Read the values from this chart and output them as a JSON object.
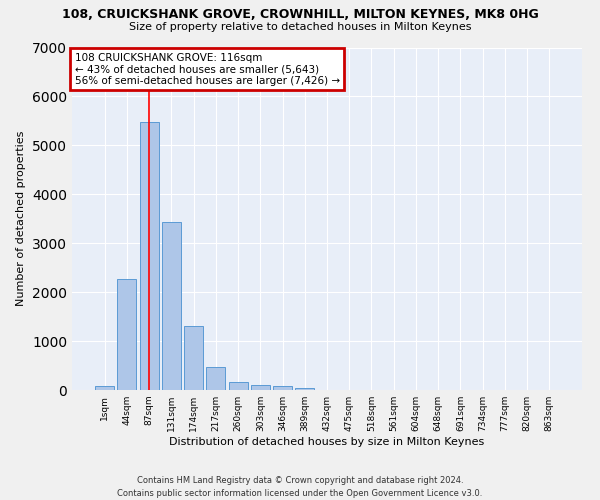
{
  "title": "108, CRUICKSHANK GROVE, CROWNHILL, MILTON KEYNES, MK8 0HG",
  "subtitle": "Size of property relative to detached houses in Milton Keynes",
  "xlabel": "Distribution of detached houses by size in Milton Keynes",
  "ylabel": "Number of detached properties",
  "footer_line1": "Contains HM Land Registry data © Crown copyright and database right 2024.",
  "footer_line2": "Contains public sector information licensed under the Open Government Licence v3.0.",
  "categories": [
    "1sqm",
    "44sqm",
    "87sqm",
    "131sqm",
    "174sqm",
    "217sqm",
    "260sqm",
    "303sqm",
    "346sqm",
    "389sqm",
    "432sqm",
    "475sqm",
    "518sqm",
    "561sqm",
    "604sqm",
    "648sqm",
    "691sqm",
    "734sqm",
    "777sqm",
    "820sqm",
    "863sqm"
  ],
  "values": [
    75,
    2270,
    5470,
    3440,
    1300,
    460,
    155,
    100,
    75,
    50,
    0,
    0,
    0,
    0,
    0,
    0,
    0,
    0,
    0,
    0,
    0
  ],
  "bar_color": "#aec6e8",
  "bar_edge_color": "#5b9bd5",
  "background_color": "#e8eef8",
  "grid_color": "#ffffff",
  "annotation_line1": "108 CRUICKSHANK GROVE: 116sqm",
  "annotation_line2": "← 43% of detached houses are smaller (5,643)",
  "annotation_line3": "56% of semi-detached houses are larger (7,426) →",
  "annotation_box_color": "#ffffff",
  "annotation_border_color": "#cc0000",
  "redline_x": 2,
  "ylim": [
    0,
    7000
  ],
  "yticks": [
    0,
    1000,
    2000,
    3000,
    4000,
    5000,
    6000,
    7000
  ],
  "title_fontsize": 9,
  "subtitle_fontsize": 8,
  "ylabel_fontsize": 8,
  "xlabel_fontsize": 8,
  "tick_fontsize": 6.5,
  "footer_fontsize": 6,
  "annotation_fontsize": 7.5,
  "fig_bg_color": "#f0f0f0"
}
